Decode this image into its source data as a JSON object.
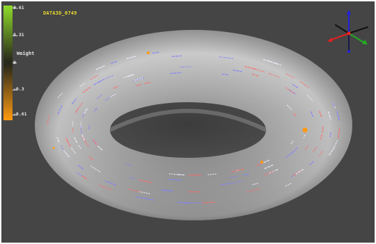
{
  "dataset": {
    "label": "DATA3D_0749"
  },
  "legend": {
    "title": "Weight",
    "ticks": [
      "0.61",
      "0.31",
      "0",
      "-0.3",
      "-0.61"
    ],
    "colors": {
      "top": "#8fdc2a",
      "mid": "#2a2a1a",
      "bottom": "#ff9a10"
    }
  },
  "scene": {
    "object": "torus",
    "background": "#454545",
    "surface_color": "#cfcfcf",
    "track_colors": [
      "#8080ff",
      "#ff6a6a",
      "#f0f0ff"
    ],
    "marker_color": "#ff9a10"
  },
  "axes_gizmo": {
    "icon": "xyz-axes-icon",
    "colors": {
      "x": "#e02020",
      "y": "#20b020",
      "z": "#2020e0",
      "neg": "#101010"
    }
  }
}
